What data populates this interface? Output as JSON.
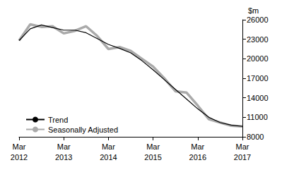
{
  "chart_data": {
    "type": "line",
    "y_label": "$m",
    "categories": [
      "Mar 2012",
      null,
      null,
      null,
      "Mar 2013",
      null,
      null,
      null,
      "Mar 2014",
      null,
      null,
      null,
      "Mar 2015",
      null,
      null,
      null,
      "Mar 2016",
      null,
      null,
      null,
      "Mar 2017"
    ],
    "series": [
      {
        "name": "Trend",
        "color": "#000000",
        "values": [
          22800,
          24600,
          25200,
          24800,
          24400,
          24400,
          24000,
          23100,
          22200,
          21600,
          20900,
          19700,
          18300,
          16800,
          15300,
          13800,
          12300,
          11000,
          10200,
          9800,
          9600
        ]
      },
      {
        "name": "Seasonally Adjusted",
        "color": "#aaaaaa",
        "values": [
          22800,
          25300,
          24900,
          25000,
          23900,
          24300,
          25000,
          23500,
          21500,
          21800,
          21200,
          20000,
          18800,
          17000,
          15000,
          14800,
          12800,
          10700,
          10200,
          9700,
          9600
        ]
      }
    ],
    "ylim": [
      8000,
      26000
    ],
    "yticks": [
      8000,
      11000,
      14000,
      17000,
      20000,
      23000,
      26000
    ],
    "grid": false,
    "legend": "lower left"
  }
}
